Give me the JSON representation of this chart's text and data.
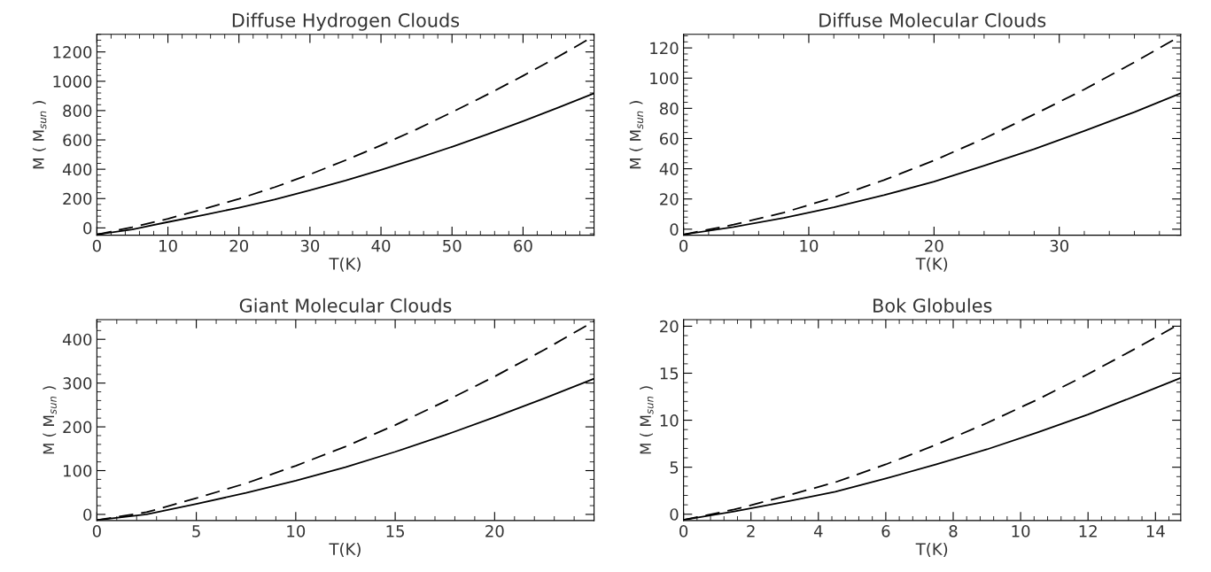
{
  "chart_data": [
    {
      "type": "line",
      "title": "Diffuse Hydrogen Clouds",
      "xlabel": "T(K)",
      "ylabel": "M ( M$_{sun}$ )",
      "xlim": [
        0,
        70
      ],
      "xticks": [
        0,
        10,
        20,
        30,
        40,
        50,
        60
      ],
      "ylim": [
        -50,
        1320
      ],
      "yticks": [
        0,
        200,
        400,
        600,
        800,
        1000,
        1200
      ],
      "grid": false,
      "legend": false,
      "x": [
        0,
        5,
        10,
        15,
        20,
        25,
        30,
        35,
        40,
        45,
        50,
        55,
        60,
        65,
        70
      ],
      "series": [
        {
          "color": "#000000",
          "line_style": "solid",
          "values": [
            -45,
            -10,
            40,
            88,
            138,
            193,
            256,
            323,
            396,
            472,
            553,
            638,
            728,
            821,
            918
          ]
        },
        {
          "color": "#000000",
          "line_style": "dashed",
          "values": [
            -45,
            5,
            62,
            128,
            198,
            277,
            365,
            461,
            563,
            672,
            789,
            910,
            1037,
            1169,
            1308
          ]
        }
      ]
    },
    {
      "type": "line",
      "title": "Diffuse Molecular Clouds",
      "xlabel": "T(K)",
      "ylabel": "M ( M$_{sun}$ )",
      "xlim": [
        0,
        39.7
      ],
      "xticks": [
        0,
        10,
        20,
        30
      ],
      "ylim": [
        -4,
        129
      ],
      "yticks": [
        0,
        20,
        40,
        60,
        80,
        100,
        120
      ],
      "grid": false,
      "legend": false,
      "x": [
        0,
        4,
        8,
        12,
        16,
        20,
        24,
        28,
        32,
        36,
        39.7
      ],
      "series": [
        {
          "color": "#000000",
          "line_style": "solid",
          "values": [
            -3.5,
            1.5,
            7.5,
            14.5,
            22.5,
            31.5,
            42,
            53,
            65,
            77.5,
            90
          ]
        },
        {
          "color": "#000000",
          "line_style": "dashed",
          "values": [
            -3.5,
            3,
            11,
            21,
            32.5,
            45.5,
            60,
            76,
            92.5,
            110.5,
            128
          ]
        }
      ]
    },
    {
      "type": "line",
      "title": "Giant Molecular Clouds",
      "xlabel": "T(K)",
      "ylabel": "M ( M$_{sun}$ )",
      "xlim": [
        0,
        25
      ],
      "xticks": [
        0,
        5,
        10,
        15,
        20
      ],
      "ylim": [
        -14,
        445
      ],
      "yticks": [
        0,
        100,
        200,
        300,
        400
      ],
      "grid": false,
      "legend": false,
      "x": [
        0,
        2.5,
        5,
        7.5,
        10,
        12.5,
        15,
        17.5,
        20,
        22.5,
        25
      ],
      "series": [
        {
          "color": "#000000",
          "line_style": "solid",
          "values": [
            -13,
            0,
            24,
            49,
            77,
            108,
            143,
            181,
            222,
            265,
            310
          ]
        },
        {
          "color": "#000000",
          "line_style": "dashed",
          "values": [
            -13,
            5,
            37,
            71,
            111,
            155,
            204,
            258,
            315,
            376,
            441
          ]
        }
      ]
    },
    {
      "type": "line",
      "title": "Bok Globules",
      "xlabel": "T(K)",
      "ylabel": "M ( M$_{sun}$ )",
      "xlim": [
        0,
        14.75
      ],
      "xticks": [
        0,
        2,
        4,
        6,
        8,
        10,
        12,
        14
      ],
      "ylim": [
        -0.67,
        20.7
      ],
      "yticks": [
        0,
        5,
        10,
        15,
        20
      ],
      "grid": false,
      "legend": false,
      "x": [
        0,
        1.5,
        3,
        4.5,
        6,
        7.5,
        9,
        10.5,
        12,
        13.5,
        14.75
      ],
      "series": [
        {
          "color": "#000000",
          "line_style": "solid",
          "values": [
            -0.6,
            0.3,
            1.3,
            2.4,
            3.8,
            5.3,
            6.9,
            8.7,
            10.6,
            12.7,
            14.5
          ]
        },
        {
          "color": "#000000",
          "line_style": "dashed",
          "values": [
            -0.6,
            0.5,
            1.9,
            3.4,
            5.3,
            7.4,
            9.7,
            12.2,
            14.9,
            17.8,
            20.3
          ]
        }
      ]
    }
  ]
}
